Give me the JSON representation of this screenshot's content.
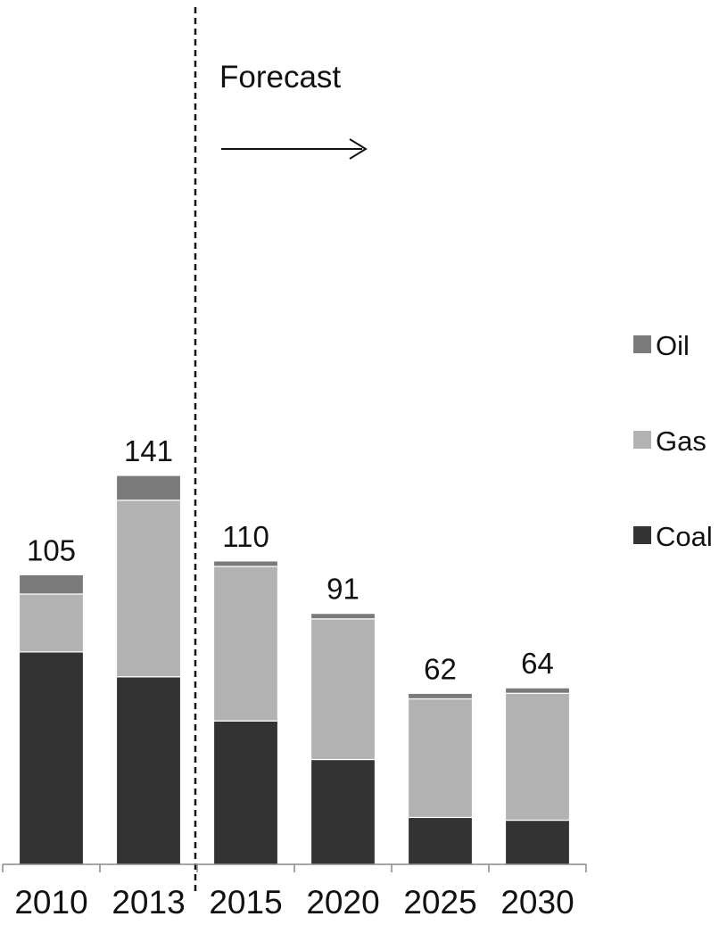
{
  "chart_data": {
    "type": "bar",
    "stacked": true,
    "categories": [
      "2010",
      "2013",
      "2015",
      "2020",
      "2025",
      "2030"
    ],
    "totals": [
      105,
      141,
      110,
      91,
      62,
      64
    ],
    "series": [
      {
        "name": "Coal",
        "color": "#333333",
        "values": [
          77,
          68,
          52,
          38,
          17,
          16
        ]
      },
      {
        "name": "Gas",
        "color": "#b2b2b2",
        "values": [
          21,
          64,
          56,
          51,
          43,
          46
        ]
      },
      {
        "name": "Oil",
        "color": "#7a7a7a",
        "values": [
          7,
          9,
          2,
          2,
          2,
          2
        ]
      }
    ],
    "ylim": [
      0,
      141
    ],
    "grid": false,
    "legend_position": "right",
    "legend_order": [
      "Oil",
      "Gas",
      "Coal"
    ],
    "annotation": {
      "text": "Forecast",
      "divider_between": [
        "2013",
        "2015"
      ],
      "arrow": "right"
    }
  }
}
